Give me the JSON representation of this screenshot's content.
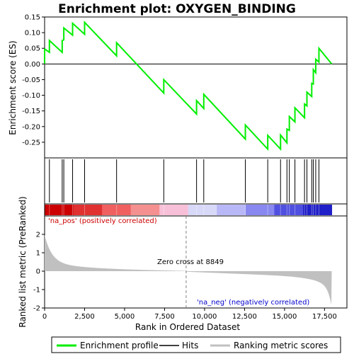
{
  "chart_data": {
    "type": "line",
    "title": "Enrichment plot: OXYGEN_BINDING",
    "xlabel": "Rank in Ordered Dataset",
    "ylabel_top": "Enrichment score (ES)",
    "ylabel_bottom": "Ranked list metric (PreRanked)",
    "xlim": [
      0,
      18900
    ],
    "es_ylim": [
      -0.3,
      0.15
    ],
    "metric_ylim": [
      -2,
      3
    ],
    "x_ticks": [
      0,
      2500,
      5000,
      7500,
      10000,
      12500,
      15000,
      17500
    ],
    "x_tick_labels": [
      "0",
      "2,500",
      "5,000",
      "7,500",
      "10,000",
      "12,500",
      "15,000",
      "17,500"
    ],
    "es_ticks": [
      0.15,
      0.1,
      0.05,
      0.0,
      -0.05,
      -0.1,
      -0.15,
      -0.2,
      -0.25
    ],
    "es_tick_labels": [
      "0.15",
      "0.10",
      "0.05",
      "0.00",
      "-0.05",
      "-0.10",
      "-0.15",
      "-0.20",
      "-0.25"
    ],
    "metric_ticks": [
      2,
      1,
      0,
      -1,
      -2
    ],
    "metric_tick_labels": [
      "2",
      "1",
      "0",
      "-1",
      "-2"
    ],
    "hits": [
      0,
      300,
      1100,
      1200,
      1750,
      2500,
      4500,
      7450,
      9500,
      9950,
      12550,
      13950,
      14750,
      15150,
      15300,
      15650,
      16250,
      16400,
      16700,
      16800,
      16950,
      17150
    ],
    "es_profile": {
      "x": [
        0,
        0,
        300,
        300,
        1100,
        1100,
        1200,
        1200,
        1750,
        1750,
        2500,
        2500,
        4500,
        4500,
        7450,
        7450,
        9500,
        9500,
        9950,
        9950,
        12550,
        12550,
        13950,
        13950,
        14750,
        14750,
        15150,
        15150,
        15300,
        15300,
        15650,
        15650,
        16250,
        16250,
        16400,
        16400,
        16700,
        16700,
        16800,
        16800,
        16950,
        16950,
        17150,
        17150,
        17950
      ],
      "y": [
        0.0,
        0.048,
        0.037,
        0.075,
        0.037,
        0.075,
        0.077,
        0.115,
        0.092,
        0.13,
        0.095,
        0.133,
        0.026,
        0.068,
        -0.093,
        -0.05,
        -0.16,
        -0.117,
        -0.142,
        -0.097,
        -0.24,
        -0.195,
        -0.272,
        -0.228,
        -0.272,
        -0.227,
        -0.252,
        -0.208,
        -0.212,
        -0.168,
        -0.185,
        -0.14,
        -0.172,
        -0.128,
        -0.134,
        -0.09,
        -0.104,
        -0.062,
        -0.064,
        -0.018,
        -0.028,
        0.015,
        0.006,
        0.05,
        0.0
      ]
    },
    "color_bands": [
      "#cc0000",
      "#e03030",
      "#f06060",
      "#f59090",
      "#f8c0d8",
      "#d8d8f8",
      "#b8b8f8",
      "#8888f0",
      "#5050e0",
      "#2020c8"
    ],
    "pos_label": "'na_pos' (positively correlated)",
    "neg_label": "'na_neg' (negatively correlated)",
    "zero_cross_label": "Zero cross at 8849",
    "zero_cross": 8849,
    "colors": {
      "profile": "#00ee00",
      "hit": "#000000",
      "metric_fill": "#c0c0c0",
      "pos_label": "#cc0000",
      "neg_label": "#0000cc",
      "zero_line": "#808080"
    },
    "legend": [
      "Enrichment profile",
      "Hits",
      "Ranking metric scores"
    ]
  }
}
